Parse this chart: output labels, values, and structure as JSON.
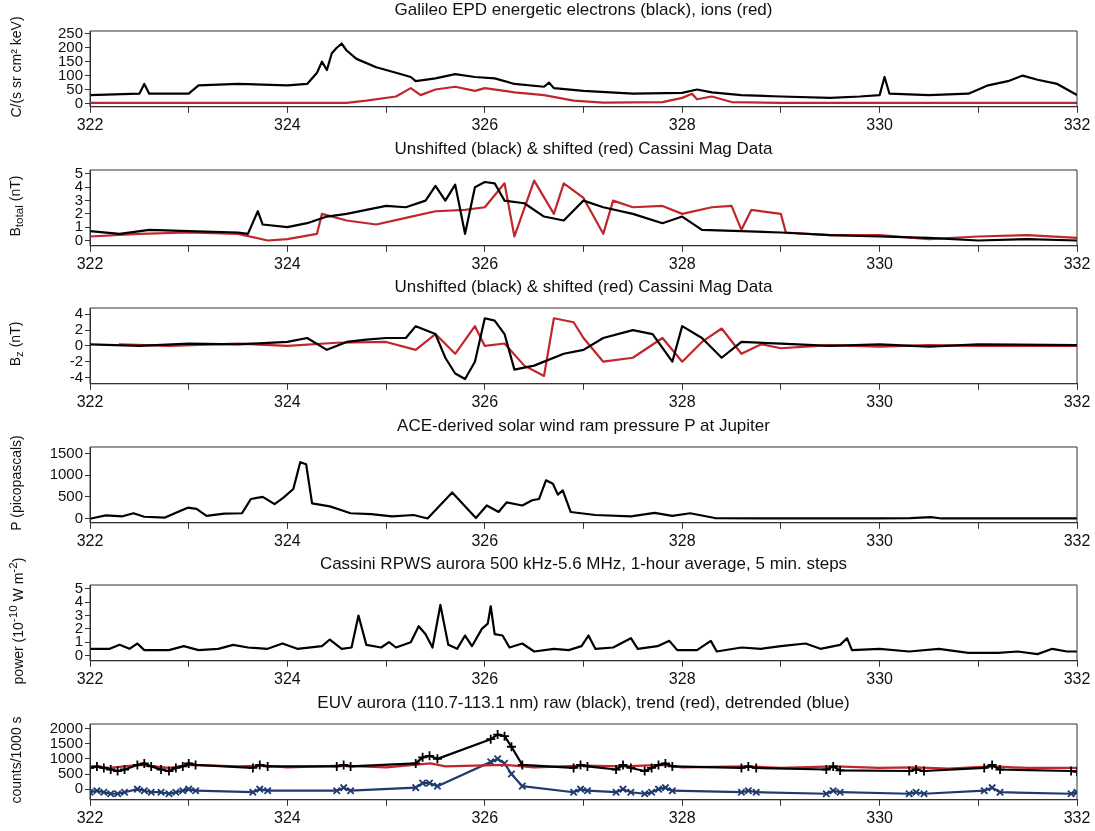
{
  "chart_data": [
    {
      "type": "line",
      "title": "Galileo EPD energetic electrons (black), ions (red)",
      "ylabel": "C/(s sr cm² keV)",
      "xlim": [
        322,
        332
      ],
      "xticks": [
        322,
        {
          "value": 323,
          "label": null
        },
        324,
        {
          "value": 325,
          "label": null
        },
        326,
        {
          "value": 327,
          "label": null
        },
        328,
        {
          "value": 329,
          "label": null
        },
        330,
        {
          "value": 331,
          "label": null
        },
        332
      ],
      "ylim": [
        -12,
        260
      ],
      "yticks": [
        0,
        50,
        100,
        150,
        200,
        250
      ],
      "series": [
        {
          "color": "#000000",
          "x": [
            322,
            322.5,
            322.55,
            322.6,
            323,
            323.1,
            323.5,
            324,
            324.2,
            324.3,
            324.35,
            324.4,
            324.45,
            324.5,
            324.55,
            324.6,
            324.7,
            324.9,
            325.1,
            325.25,
            325.3,
            325.5,
            325.7,
            325.9,
            326.1,
            326.3,
            326.6,
            326.65,
            326.7,
            327,
            327.5,
            328,
            328.15,
            328.3,
            328.6,
            329,
            329.5,
            329.8,
            330,
            330.05,
            330.1,
            330.5,
            330.9,
            331.1,
            331.3,
            331.45,
            331.6,
            331.8,
            331.9,
            332
          ],
          "values": [
            30,
            35,
            70,
            35,
            35,
            65,
            70,
            65,
            70,
            110,
            150,
            120,
            180,
            200,
            215,
            190,
            160,
            130,
            110,
            95,
            80,
            90,
            105,
            95,
            90,
            70,
            60,
            75,
            55,
            45,
            35,
            38,
            50,
            40,
            30,
            25,
            20,
            25,
            30,
            95,
            35,
            30,
            35,
            65,
            80,
            100,
            85,
            70,
            50,
            30
          ]
        },
        {
          "color": "#c0262b",
          "x": [
            322,
            323,
            324,
            324.6,
            324.8,
            325.1,
            325.25,
            325.35,
            325.5,
            325.7,
            325.9,
            326,
            326.3,
            326.6,
            326.9,
            327.2,
            327.8,
            328,
            328.1,
            328.15,
            328.3,
            328.5,
            329,
            332
          ],
          "values": [
            2,
            2,
            2,
            2,
            10,
            25,
            55,
            30,
            50,
            60,
            45,
            55,
            40,
            30,
            10,
            3,
            5,
            20,
            35,
            15,
            25,
            5,
            2,
            2
          ]
        }
      ]
    },
    {
      "type": "line",
      "title": "Unshifted (black) & shifted (red) Cassini Mag Data",
      "ylabel": "B$_{total}$ (nT)",
      "xlim": [
        322,
        332
      ],
      "xticks": [
        322,
        {
          "value": 323,
          "label": null
        },
        324,
        {
          "value": 325,
          "label": null
        },
        326,
        {
          "value": 327,
          "label": null
        },
        328,
        {
          "value": 329,
          "label": null
        },
        330,
        {
          "value": 331,
          "label": null
        },
        332
      ],
      "ylim": [
        -0.4,
        5.3
      ],
      "yticks": [
        0,
        1,
        2,
        3,
        4,
        5
      ],
      "series": [
        {
          "color": "#000000",
          "x": [
            322,
            322.3,
            322.6,
            323,
            323.5,
            323.6,
            323.7,
            323.75,
            324,
            324.2,
            324.4,
            324.6,
            324.8,
            325,
            325.2,
            325.4,
            325.5,
            325.6,
            325.7,
            325.8,
            325.9,
            326,
            326.1,
            326.2,
            326.4,
            326.6,
            326.8,
            327,
            327.2,
            327.5,
            327.8,
            328,
            328.2,
            328.6,
            329,
            329.5,
            330,
            330.5,
            331,
            331.5,
            332
          ],
          "values": [
            0.7,
            0.5,
            0.8,
            0.7,
            0.6,
            0.5,
            2.2,
            1.2,
            1,
            1.3,
            1.8,
            2,
            2.3,
            2.6,
            2.5,
            3,
            4.1,
            3,
            4.2,
            0.5,
            4,
            4.4,
            4.3,
            3,
            2.8,
            1.8,
            1.5,
            3,
            2.5,
            2,
            1.3,
            1.8,
            0.8,
            0.7,
            0.6,
            0.4,
            0.3,
            0.2,
            0,
            0.1,
            0
          ]
        },
        {
          "color": "#c0262b",
          "x": [
            322,
            322.5,
            323,
            323.5,
            323.8,
            324,
            324.3,
            324.35,
            324.6,
            324.9,
            325.2,
            325.5,
            325.8,
            326,
            326.2,
            326.3,
            326.5,
            326.7,
            326.8,
            327,
            327.2,
            327.3,
            327.5,
            327.8,
            328,
            328.3,
            328.5,
            328.6,
            328.7,
            329,
            329.05,
            329.5,
            330,
            330.5,
            331,
            331.5,
            332
          ],
          "values": [
            0.3,
            0.5,
            0.6,
            0.5,
            0,
            0.1,
            0.5,
            2,
            1.5,
            1.2,
            1.7,
            2.2,
            2.3,
            2.5,
            4.3,
            0.3,
            4.5,
            2,
            4.3,
            3.2,
            0.5,
            3,
            2.5,
            2.6,
            2,
            2.5,
            2.6,
            0.8,
            2.3,
            2,
            0.6,
            0.4,
            0.4,
            0.1,
            0.3,
            0.4,
            0.2
          ]
        }
      ]
    },
    {
      "type": "line",
      "title": "Unshifted (black) & shifted (red) Cassini Mag Data",
      "ylabel": "B$_{z}$ (nT)",
      "xlim": [
        322,
        332
      ],
      "xticks": [
        322,
        {
          "value": 323,
          "label": null
        },
        324,
        {
          "value": 325,
          "label": null
        },
        326,
        {
          "value": 327,
          "label": null
        },
        328,
        {
          "value": 329,
          "label": null
        },
        330,
        {
          "value": 331,
          "label": null
        },
        332
      ],
      "ylim": [
        -4.8,
        4.8
      ],
      "yticks": [
        -4,
        -2,
        0,
        2,
        4
      ],
      "series": [
        {
          "color": "#000000",
          "x": [
            322,
            322.5,
            323,
            323.5,
            324,
            324.2,
            324.4,
            324.6,
            324.8,
            325,
            325.2,
            325.3,
            325.5,
            325.6,
            325.7,
            325.8,
            325.9,
            326,
            326.1,
            326.2,
            326.3,
            326.5,
            326.8,
            327,
            327.2,
            327.5,
            327.7,
            327.9,
            328,
            328.2,
            328.4,
            328.6,
            329,
            329.5,
            330,
            330.5,
            331,
            332
          ],
          "values": [
            0.2,
            0,
            0.3,
            0.2,
            0.5,
            1,
            -0.5,
            0.5,
            0.8,
            1,
            1,
            2.5,
            1.5,
            -1.5,
            -3.5,
            -4.2,
            -2,
            3.5,
            3.2,
            1.5,
            -3,
            -2.5,
            -1,
            -0.5,
            1,
            2,
            1.5,
            -2,
            2.5,
            1,
            -1.5,
            0.5,
            0.3,
            0,
            0.2,
            -0.1,
            0.2,
            0.1
          ]
        },
        {
          "color": "#c0262b",
          "x": [
            322.3,
            322.8,
            323.5,
            324,
            324.5,
            325,
            325.3,
            325.5,
            325.7,
            325.9,
            326,
            326.2,
            326.4,
            326.6,
            326.7,
            326.9,
            327,
            327.2,
            327.5,
            327.8,
            328,
            328.2,
            328.4,
            328.6,
            328.8,
            329,
            329.5,
            330,
            330.5,
            331,
            332
          ],
          "values": [
            0.2,
            0,
            0.3,
            0,
            0.4,
            0.5,
            -0.5,
            1.5,
            -1,
            2.5,
            0,
            0.3,
            -2.5,
            -3.8,
            3.5,
            3,
            1,
            -2,
            -1.5,
            1,
            -2,
            0.5,
            2.2,
            -1,
            0.2,
            -0.3,
            0.1,
            -0.1,
            0.1,
            0,
            0
          ]
        }
      ]
    },
    {
      "type": "line",
      "title": "ACE-derived solar wind ram pressure P at Jupiter",
      "ylabel": "P (picopascals)",
      "xlim": [
        322,
        332
      ],
      "xticks": [
        322,
        {
          "value": 323,
          "label": null
        },
        324,
        {
          "value": 325,
          "label": null
        },
        326,
        {
          "value": 327,
          "label": null
        },
        328,
        {
          "value": 329,
          "label": null
        },
        330,
        {
          "value": 331,
          "label": null
        },
        332
      ],
      "ylim": [
        -100,
        1650
      ],
      "yticks": [
        0,
        500,
        1000,
        1500
      ],
      "series": [
        {
          "color": "#000000",
          "x": [
            322.01,
            322.16,
            322.33,
            322.44,
            322.55,
            322.76,
            322.99,
            323.08,
            323.18,
            323.36,
            323.54,
            323.63,
            323.75,
            323.87,
            323.96,
            324.06,
            324.13,
            324.19,
            324.25,
            324.43,
            324.64,
            324.85,
            325.06,
            325.28,
            325.42,
            325.67,
            325.91,
            326.02,
            326.14,
            326.22,
            326.38,
            326.48,
            326.55,
            326.62,
            326.69,
            326.74,
            326.79,
            326.87,
            327.12,
            327.48,
            327.72,
            327.9,
            328.08,
            328.33,
            328.89,
            329.6,
            329.96,
            330.31,
            330.52,
            330.63,
            331.02,
            332
          ],
          "values": [
            0,
            70,
            50,
            120,
            40,
            20,
            250,
            220,
            60,
            110,
            120,
            450,
            500,
            330,
            480,
            680,
            1300,
            1250,
            350,
            280,
            120,
            100,
            50,
            80,
            0,
            600,
            10,
            300,
            150,
            370,
            300,
            420,
            450,
            880,
            800,
            550,
            650,
            150,
            80,
            50,
            130,
            60,
            120,
            10,
            0,
            0,
            0,
            10,
            30,
            0,
            0,
            0
          ]
        }
      ]
    },
    {
      "type": "line",
      "title": "Cassini RPWS aurora 500 kHz-5.6 MHz, 1-hour average, 5 min. steps",
      "ylabel": "power (10$^{-10}$ W m$^{-2}$)",
      "xlim": [
        322,
        332
      ],
      "xticks": [
        322,
        {
          "value": 323,
          "label": null
        },
        324,
        {
          "value": 325,
          "label": null
        },
        326,
        {
          "value": 327,
          "label": null
        },
        328,
        {
          "value": 329,
          "label": null
        },
        330,
        {
          "value": 331,
          "label": null
        },
        332
      ],
      "ylim": [
        -0.4,
        5.3
      ],
      "yticks": [
        0,
        1,
        2,
        3,
        4,
        5
      ],
      "series": [
        {
          "color": "#000000",
          "x": [
            322,
            322.2,
            322.3,
            322.4,
            322.48,
            322.55,
            322.8,
            322.95,
            323.1,
            323.3,
            323.45,
            323.6,
            323.8,
            323.95,
            324.1,
            324.35,
            324.43,
            324.55,
            324.65,
            324.72,
            324.8,
            324.95,
            325.03,
            325.1,
            325.25,
            325.33,
            325.4,
            325.47,
            325.55,
            325.63,
            325.72,
            325.8,
            325.87,
            325.97,
            326.03,
            326.06,
            326.1,
            326.18,
            326.25,
            326.38,
            326.5,
            326.7,
            326.85,
            326.98,
            327.05,
            327.12,
            327.3,
            327.48,
            327.55,
            327.75,
            327.87,
            327.95,
            328.15,
            328.29,
            328.35,
            328.6,
            328.8,
            329,
            329.25,
            329.4,
            329.6,
            329.67,
            329.72,
            330,
            330.3,
            330.6,
            330.9,
            331.2,
            331.4,
            331.6,
            331.75,
            331.9,
            332
          ],
          "values": [
            0.5,
            0.5,
            0.8,
            0.5,
            0.9,
            0.4,
            0.4,
            0.7,
            0.4,
            0.5,
            0.8,
            0.6,
            0.5,
            0.9,
            0.5,
            0.7,
            1.2,
            0.5,
            0.6,
            3,
            0.8,
            0.6,
            1,
            0.6,
            1,
            2.2,
            1.6,
            0.6,
            3.8,
            0.8,
            0.5,
            1.5,
            0.7,
            2,
            2.4,
            3.7,
            1.6,
            1.5,
            0.6,
            0.9,
            0.3,
            0.5,
            0.4,
            0.7,
            1.5,
            0.5,
            0.6,
            1.3,
            0.5,
            0.7,
            1.1,
            0.4,
            0.4,
            1.1,
            0.3,
            0.6,
            0.5,
            0.7,
            0.9,
            0.5,
            0.8,
            1.3,
            0.4,
            0.5,
            0.3,
            0.5,
            0.2,
            0.2,
            0.3,
            0.1,
            0.5,
            0.3,
            0.3
          ]
        }
      ]
    },
    {
      "type": "line",
      "title": "EUV aurora (110.7-113.1 nm) raw (black), trend (red), detrended (blue)",
      "ylabel": "counts/1000 s",
      "xlim": [
        322,
        332
      ],
      "xticks": [
        322,
        {
          "value": 323,
          "label": null
        },
        324,
        {
          "value": 325,
          "label": null
        },
        326,
        {
          "value": 327,
          "label": null
        },
        328,
        {
          "value": 329,
          "label": null
        },
        330,
        {
          "value": 331,
          "label": null
        },
        332
      ],
      "ylim": [
        -350,
        2150
      ],
      "yticks": [
        0,
        500,
        1000,
        1500,
        2000
      ],
      "series": [
        {
          "color": "#000000",
          "marker": "cross",
          "x": [
            322,
            322.07,
            322.14,
            322.21,
            322.28,
            322.35,
            322.48,
            322.55,
            322.62,
            322.72,
            322.8,
            322.87,
            322.94,
            323,
            323.07,
            323.65,
            323.72,
            323.8,
            324.5,
            324.57,
            324.64,
            325.3,
            325.37,
            325.44,
            325.52,
            326.06,
            326.13,
            326.2,
            326.27,
            326.38,
            326.9,
            326.97,
            327.04,
            327.33,
            327.4,
            327.48,
            327.62,
            327.69,
            327.76,
            327.83,
            327.9,
            328.6,
            328.67,
            328.75,
            329.46,
            329.53,
            329.6,
            330.3,
            330.37,
            330.45,
            331.06,
            331.14,
            331.22,
            331.94,
            332
          ],
          "values": [
            700,
            750,
            700,
            650,
            600,
            650,
            800,
            850,
            750,
            650,
            600,
            700,
            750,
            850,
            800,
            700,
            800,
            750,
            750,
            800,
            750,
            850,
            1050,
            1100,
            1000,
            1650,
            1800,
            1750,
            1400,
            800,
            700,
            800,
            750,
            650,
            800,
            700,
            600,
            700,
            800,
            850,
            750,
            700,
            750,
            700,
            650,
            750,
            620,
            600,
            650,
            600,
            700,
            800,
            650,
            600,
            580
          ]
        },
        {
          "color": "#c0262b",
          "x": [
            322,
            322.2,
            322.5,
            322.8,
            323,
            323.5,
            323.75,
            324,
            324.55,
            325,
            325.45,
            325.6,
            326.2,
            326.5,
            327,
            327.4,
            327.8,
            328,
            328.65,
            329,
            329.55,
            330,
            330.35,
            330.7,
            331.14,
            331.5,
            332
          ],
          "values": [
            750,
            700,
            800,
            700,
            800,
            750,
            780,
            720,
            780,
            720,
            850,
            750,
            800,
            720,
            780,
            750,
            800,
            720,
            750,
            700,
            750,
            700,
            720,
            680,
            750,
            700,
            700
          ]
        },
        {
          "color": "#1f3a6e",
          "marker": "x",
          "x": [
            322,
            322.07,
            322.14,
            322.21,
            322.28,
            322.35,
            322.48,
            322.55,
            322.62,
            322.72,
            322.8,
            322.87,
            322.94,
            323,
            323.07,
            323.65,
            323.72,
            323.8,
            324.5,
            324.57,
            324.64,
            325.3,
            325.37,
            325.44,
            325.52,
            326.06,
            326.13,
            326.2,
            326.27,
            326.38,
            326.9,
            326.97,
            327.04,
            327.33,
            327.4,
            327.48,
            327.62,
            327.69,
            327.76,
            327.83,
            327.9,
            328.6,
            328.67,
            328.75,
            329.46,
            329.53,
            329.6,
            330.3,
            330.37,
            330.45,
            331.06,
            331.14,
            331.22,
            331.94,
            332
          ],
          "values": [
            -100,
            -50,
            -100,
            -150,
            -150,
            -100,
            0,
            -50,
            -100,
            -100,
            -150,
            -100,
            -50,
            0,
            -50,
            -100,
            0,
            -50,
            -50,
            50,
            -50,
            50,
            200,
            200,
            100,
            900,
            1000,
            850,
            500,
            100,
            -100,
            0,
            -50,
            -100,
            0,
            -100,
            -150,
            -100,
            0,
            50,
            -50,
            -100,
            -50,
            -100,
            -150,
            -50,
            -100,
            -150,
            -100,
            -150,
            -50,
            50,
            -100,
            -150,
            -100
          ]
        }
      ]
    }
  ]
}
